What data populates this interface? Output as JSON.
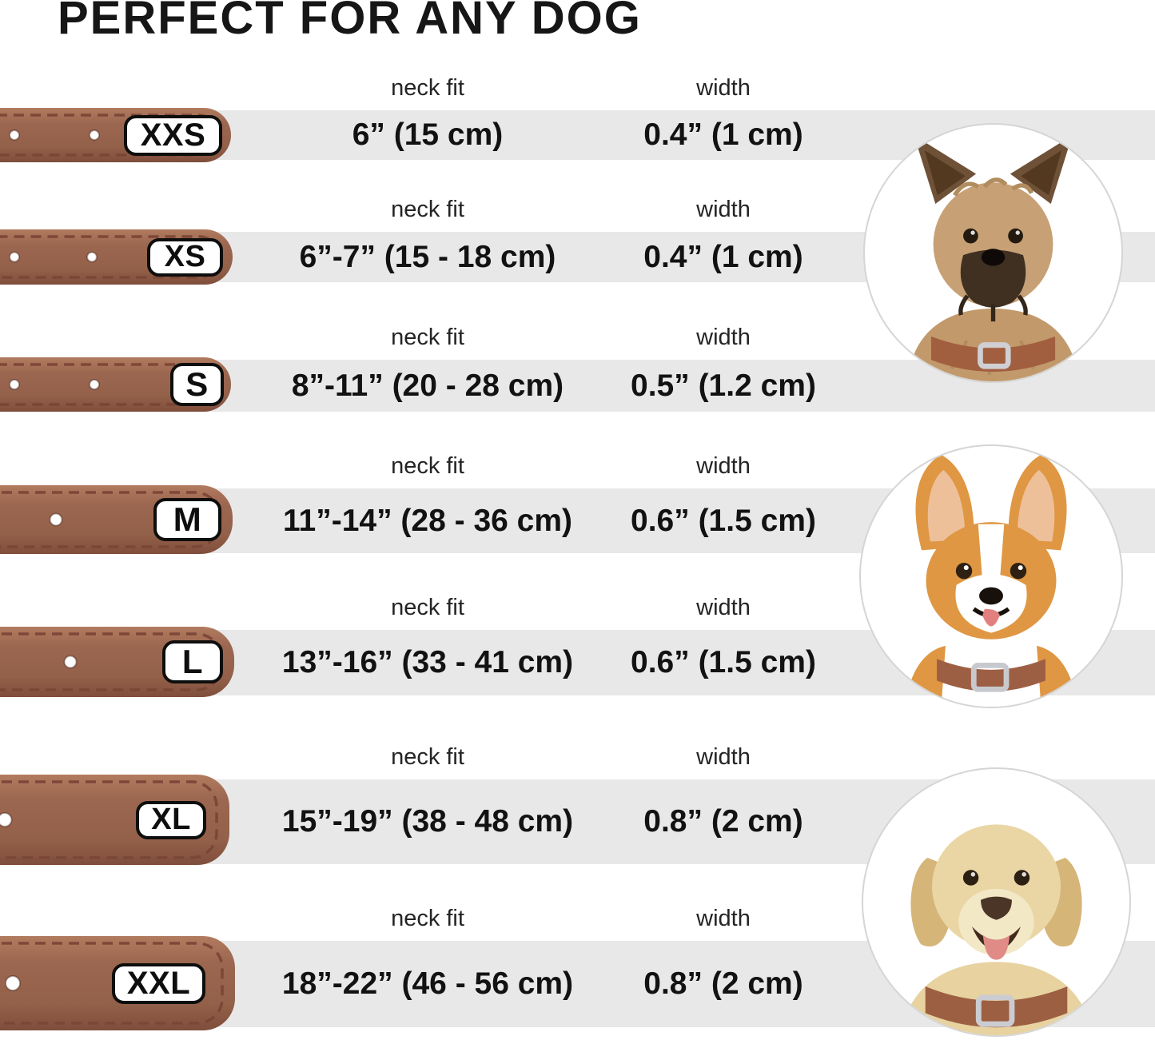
{
  "title": "PERFECT FOR ANY DOG",
  "table": {
    "neck_fit_label": "neck fit",
    "width_label": "width",
    "rows": [
      {
        "size": "XXS",
        "neck_fit": "6” (15 cm)",
        "width": "0.4” (1 cm)"
      },
      {
        "size": "XS",
        "neck_fit": "6”-7” (15 - 18 cm)",
        "width": "0.4” (1 cm)"
      },
      {
        "size": "S",
        "neck_fit": "8”-11” (20 - 28 cm)",
        "width": "0.5” (1.2 cm)"
      },
      {
        "size": "M",
        "neck_fit": "11”-14” (28 - 36 cm)",
        "width": "0.6” (1.5 cm)"
      },
      {
        "size": "L",
        "neck_fit": "13”-16” (33 - 41 cm)",
        "width": "0.6” (1.5 cm)"
      },
      {
        "size": "XL",
        "neck_fit": "15”-19” (38 - 48 cm)",
        "width": "0.8” (2 cm)"
      },
      {
        "size": "XXL",
        "neck_fit": "18”-22” (46 - 56 cm)",
        "width": "0.8” (2 cm)"
      }
    ]
  },
  "dogs": [
    {
      "name": "terrier-photo"
    },
    {
      "name": "corgi-photo"
    },
    {
      "name": "labrador-photo"
    }
  ],
  "colors": {
    "band_gray": "#e9e8e8",
    "collar_brown": "#9c6750",
    "collar_brown_light": "#b17b5f",
    "collar_brown_dark": "#7f4e3b",
    "stitch_brown": "#7a4636",
    "badge_border": "#0e0e0e",
    "badge_bg": "#ffffff",
    "text_black": "#121212",
    "circle_border": "#d5d5d5"
  }
}
